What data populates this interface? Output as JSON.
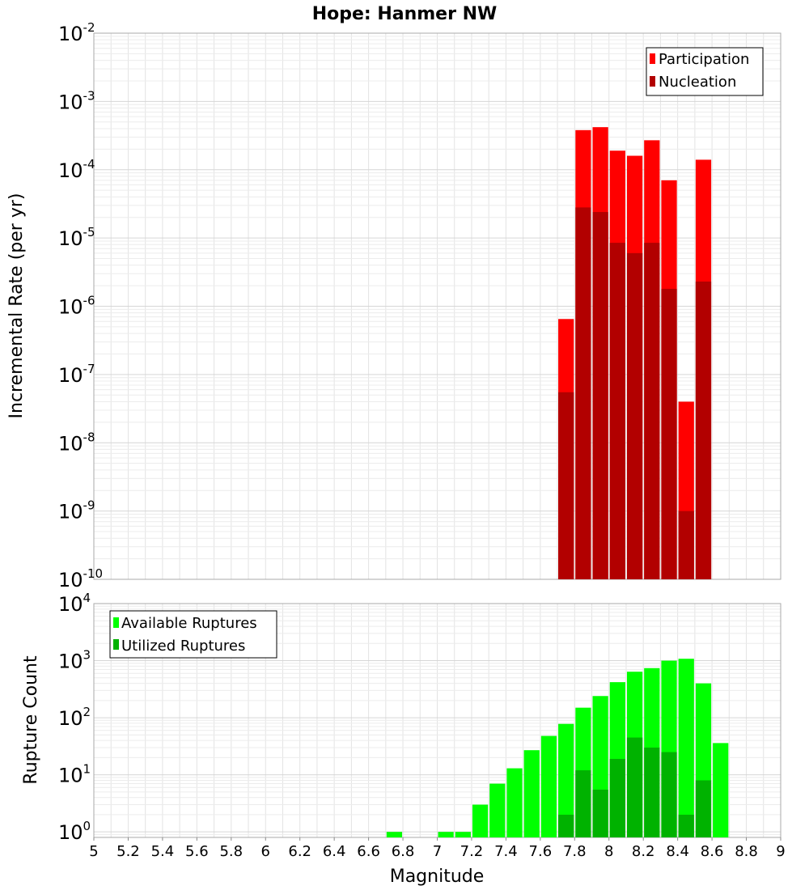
{
  "chart_data": [
    {
      "type": "bar",
      "title": "Hope: Hanmer NW",
      "ylabel": "Incremental Rate (per yr)",
      "xlabel": "",
      "yscale": "log",
      "ylim": [
        1e-10,
        0.01
      ],
      "xlim": [
        5,
        9
      ],
      "grid": true,
      "legend_position": "top-right",
      "y_ticks": [
        {
          "base": "10",
          "exp": "-10"
        },
        {
          "base": "10",
          "exp": "-9"
        },
        {
          "base": "10",
          "exp": "-8"
        },
        {
          "base": "10",
          "exp": "-7"
        },
        {
          "base": "10",
          "exp": "-6"
        },
        {
          "base": "10",
          "exp": "-5"
        },
        {
          "base": "10",
          "exp": "-4"
        },
        {
          "base": "10",
          "exp": "-3"
        },
        {
          "base": "10",
          "exp": "-2"
        }
      ],
      "x": [
        7.75,
        7.85,
        7.95,
        8.05,
        8.15,
        8.25,
        8.35,
        8.45,
        8.55
      ],
      "series": [
        {
          "name": "Participation",
          "color": "#ff0000",
          "values": [
            6.5e-07,
            0.00038,
            0.00042,
            0.00019,
            0.00016,
            0.00027,
            7e-05,
            4e-08,
            0.00014
          ]
        },
        {
          "name": "Nucleation",
          "color": "#b20000",
          "values": [
            5.5e-08,
            2.8e-05,
            2.4e-05,
            8.5e-06,
            6e-06,
            8.5e-06,
            1.8e-06,
            1e-09,
            2.3e-06
          ]
        }
      ]
    },
    {
      "type": "bar",
      "title": "",
      "ylabel": "Rupture Count",
      "xlabel": "Magnitude",
      "yscale": "log",
      "ylim": [
        0.8,
        10000
      ],
      "xlim": [
        5,
        9
      ],
      "grid": true,
      "legend_position": "top-left",
      "y_ticks": [
        {
          "base": "10",
          "exp": "0"
        },
        {
          "base": "10",
          "exp": "1"
        },
        {
          "base": "10",
          "exp": "2"
        },
        {
          "base": "10",
          "exp": "3"
        },
        {
          "base": "10",
          "exp": "4"
        }
      ],
      "x_tick_labels": [
        "5",
        "5.2",
        "5.4",
        "5.6",
        "5.8",
        "6",
        "6.2",
        "6.4",
        "6.6",
        "6.8",
        "7",
        "7.2",
        "7.4",
        "7.6",
        "7.8",
        "8",
        "8.2",
        "8.4",
        "8.6",
        "8.8",
        "9"
      ],
      "x": [
        6.75,
        7.05,
        7.15,
        7.25,
        7.35,
        7.45,
        7.55,
        7.65,
        7.75,
        7.85,
        7.95,
        8.05,
        8.15,
        8.25,
        8.35,
        8.45,
        8.55,
        8.65
      ],
      "series": [
        {
          "name": "Available Ruptures",
          "color": "#00ff00",
          "values": [
            1,
            1,
            1,
            3,
            7,
            13,
            27,
            48,
            78,
            150,
            240,
            420,
            640,
            740,
            1000,
            1080,
            400,
            36
          ]
        },
        {
          "name": "Utilized Ruptures",
          "color": "#00b200",
          "values": [
            0,
            0,
            0,
            0,
            0,
            0,
            0,
            0,
            2,
            12,
            5.5,
            19,
            45,
            30,
            25,
            2,
            8,
            0
          ]
        }
      ]
    }
  ]
}
